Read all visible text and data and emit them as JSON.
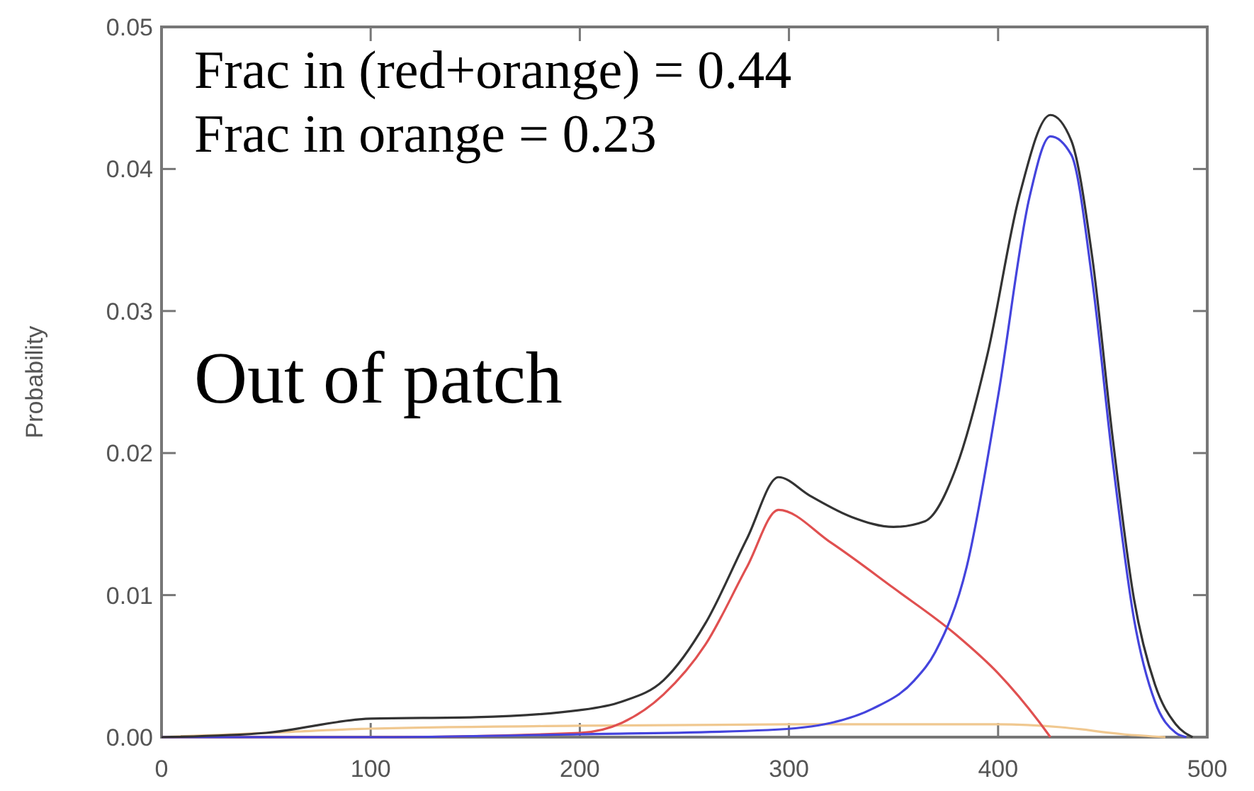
{
  "chart_data": {
    "type": "line",
    "ylabel": "Probability",
    "xlim": [
      0,
      500
    ],
    "xticks": [
      0,
      100,
      200,
      300,
      400,
      500
    ],
    "ylim": [
      0,
      0.05
    ],
    "yticks": [
      {
        "value": 0,
        "label": "0.00"
      },
      {
        "value": 0.01,
        "label": "0.01"
      },
      {
        "value": 0.02,
        "label": "0.02"
      },
      {
        "value": 0.03,
        "label": "0.03"
      },
      {
        "value": 0.04,
        "label": "0.04"
      },
      {
        "value": 0.05,
        "label": "0.05"
      }
    ],
    "grid": false,
    "annotations": [
      "Frac in (red+orange) = 0.44",
      "Frac in orange = 0.23",
      "Out of patch"
    ],
    "series": [
      {
        "color": "#f0c890",
        "x": [
          0,
          50,
          100,
          200,
          300,
          400,
          430,
          460,
          480
        ],
        "values": [
          0,
          0.0003,
          0.0006,
          0.0008,
          0.0009,
          0.0009,
          0.0007,
          0.0002,
          0
        ]
      },
      {
        "color": "#e05050",
        "x": [
          0,
          100,
          200,
          220,
          240,
          260,
          280,
          295,
          320,
          350,
          380,
          400,
          420,
          425
        ],
        "values": [
          0,
          0,
          0.0003,
          0.001,
          0.003,
          0.0065,
          0.012,
          0.016,
          0.0137,
          0.0105,
          0.0072,
          0.0045,
          0.001,
          0
        ]
      },
      {
        "color": "#4444dd",
        "x": [
          0,
          100,
          200,
          290,
          320,
          340,
          360,
          370,
          385,
          400,
          415,
          425,
          435,
          445,
          455,
          465,
          475,
          485,
          490
        ],
        "values": [
          0,
          0,
          0.0002,
          0.0005,
          0.001,
          0.002,
          0.004,
          0.006,
          0.012,
          0.024,
          0.038,
          0.0423,
          0.041,
          0.0322,
          0.0192,
          0.0083,
          0.0025,
          0.0003,
          0
        ]
      },
      {
        "color": "#333333",
        "x": [
          0,
          50,
          100,
          150,
          200,
          220,
          240,
          260,
          280,
          295,
          310,
          330,
          350,
          365,
          380,
          395,
          410,
          425,
          435,
          445,
          455,
          465,
          475,
          485,
          493
        ],
        "values": [
          0,
          0.0003,
          0.0013,
          0.0014,
          0.0019,
          0.0025,
          0.004,
          0.008,
          0.014,
          0.0183,
          0.017,
          0.0155,
          0.0148,
          0.0152,
          0.019,
          0.027,
          0.038,
          0.0438,
          0.042,
          0.0338,
          0.0208,
          0.0097,
          0.0037,
          0.0009,
          0
        ]
      }
    ]
  }
}
